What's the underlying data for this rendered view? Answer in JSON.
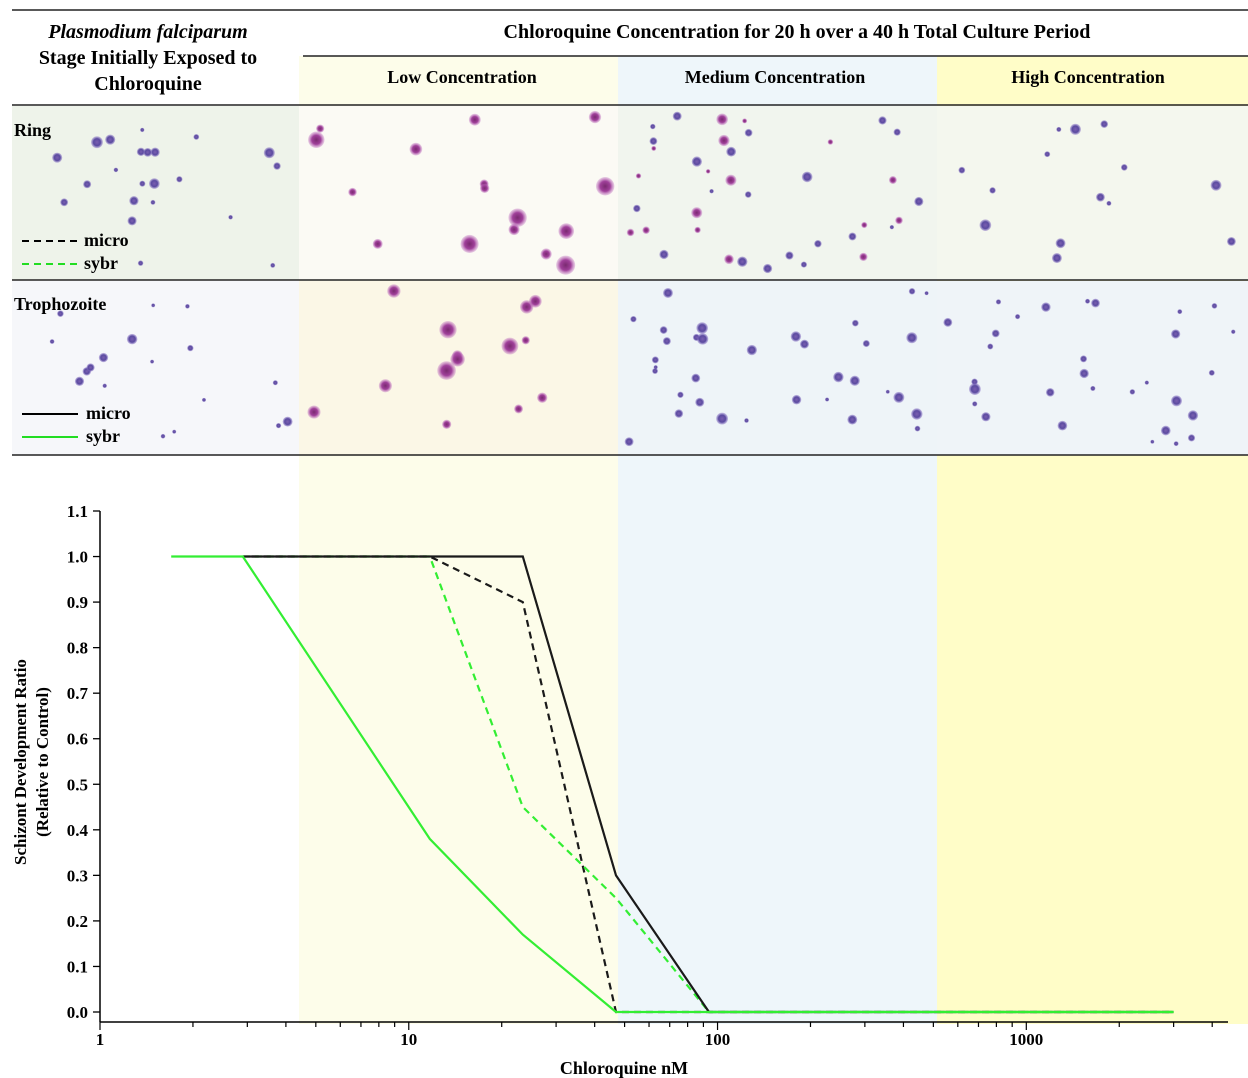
{
  "header": {
    "stage_title_italic": "Plasmodium falciparum",
    "stage_title_line2": "Stage Initially Exposed to",
    "stage_title_line3": "Chloroquine",
    "main_title": "Chloroquine Concentration for 20 h over a 40 h Total Culture Period",
    "band_labels": [
      "Low Concentration",
      "Medium Concentration",
      "High Concentration"
    ]
  },
  "rows": [
    {
      "label": "Ring",
      "legend": [
        {
          "name": "micro",
          "style": "dashed",
          "color": "#000000"
        },
        {
          "name": "sybr",
          "style": "dashed",
          "color": "#22dd22"
        }
      ]
    },
    {
      "label": "Trophozoite",
      "legend": [
        {
          "name": "micro",
          "style": "solid",
          "color": "#000000"
        },
        {
          "name": "sybr",
          "style": "solid",
          "color": "#22dd22"
        }
      ]
    }
  ],
  "colors": {
    "low_band": "#fdfdea",
    "medium_band": "#eef6fa",
    "high_band": "#fffdc8",
    "micro": "#1a1a1a",
    "sybr": "#33ee33"
  },
  "chart_data": {
    "type": "line",
    "title": "",
    "xlabel": "Chloroquine nM",
    "ylabel_line1": "Schizont Development Ratio",
    "ylabel_line2": "(Relative to Control)",
    "xscale": "log",
    "xlim": [
      1,
      4500
    ],
    "ylim": [
      0,
      1.1
    ],
    "xticks": [
      1,
      10,
      100,
      1000
    ],
    "xtick_labels": [
      "1",
      "10",
      "100",
      "1000"
    ],
    "yticks": [
      0.0,
      0.1,
      0.2,
      0.3,
      0.4,
      0.5,
      0.6,
      0.7,
      0.8,
      0.9,
      1.0,
      1.1
    ],
    "ytick_labels": [
      "0.0",
      "0.1",
      "0.2",
      "0.3",
      "0.4",
      "0.5",
      "0.6",
      "0.7",
      "0.8",
      "0.9",
      "1.0",
      "1.1"
    ],
    "bands": [
      {
        "label": "Low Concentration",
        "x0": 4.4,
        "x1": 46
      },
      {
        "label": "Medium Concentration",
        "x0": 46,
        "x1": 480
      },
      {
        "label": "High Concentration",
        "x0": 480,
        "x1": 4500
      }
    ],
    "grid": false,
    "series": [
      {
        "name": "micro",
        "stage": "Ring",
        "style": "dashed",
        "color": "#1a1a1a",
        "x": [
          3.1,
          11.7,
          23.4,
          46.9,
          93.8,
          3000
        ],
        "y": [
          1.0,
          1.0,
          0.9,
          0.0,
          0.0,
          0.0
        ]
      },
      {
        "name": "sybr",
        "stage": "Ring",
        "style": "dashed",
        "color": "#33ee33",
        "x": [
          2.9,
          11.7,
          23.4,
          46.9,
          93.8,
          3000
        ],
        "y": [
          1.0,
          1.0,
          0.45,
          0.25,
          0.0,
          0.0
        ]
      },
      {
        "name": "micro",
        "stage": "Trophozoite",
        "style": "solid",
        "color": "#1a1a1a",
        "x": [
          2.9,
          11.7,
          23.4,
          46.9,
          93.8,
          3000
        ],
        "y": [
          1.0,
          1.0,
          1.0,
          0.3,
          0.0,
          0.0
        ]
      },
      {
        "name": "sybr",
        "stage": "Trophozoite",
        "style": "solid",
        "color": "#33ee33",
        "x": [
          1.7,
          2.9,
          11.7,
          23.4,
          46.9,
          93.8,
          3000
        ],
        "y": [
          1.0,
          1.0,
          0.38,
          0.17,
          0.0,
          0.0,
          0.0
        ]
      }
    ]
  }
}
